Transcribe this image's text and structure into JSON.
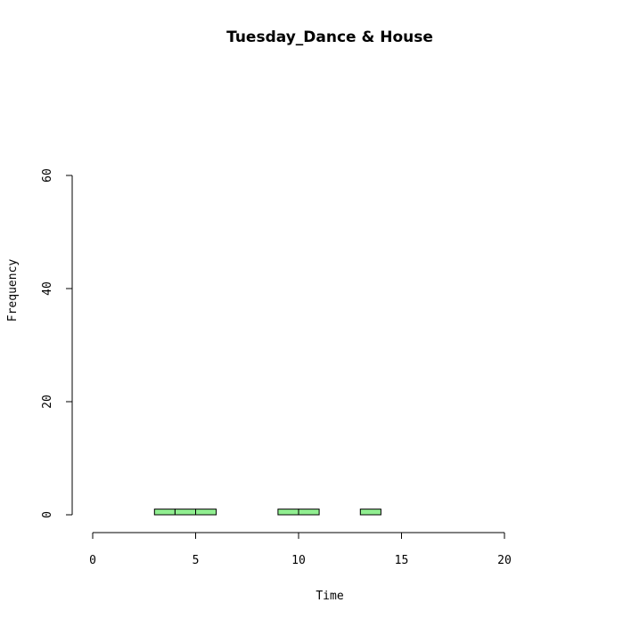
{
  "chart_data": {
    "type": "bar",
    "title": "Tuesday_Dance & House",
    "xlabel": "Time",
    "ylabel": "Frequency",
    "xlim": [
      0,
      24
    ],
    "ylim": [
      0,
      60
    ],
    "x_ticks": [
      "0",
      "5",
      "10",
      "15",
      "20"
    ],
    "y_ticks": [
      "0",
      "20",
      "40",
      "60"
    ],
    "bin_width": 1,
    "bins": [
      {
        "start": 0,
        "count": 0
      },
      {
        "start": 1,
        "count": 0
      },
      {
        "start": 2,
        "count": 0
      },
      {
        "start": 3,
        "count": 1
      },
      {
        "start": 4,
        "count": 1
      },
      {
        "start": 5,
        "count": 1
      },
      {
        "start": 6,
        "count": 0
      },
      {
        "start": 7,
        "count": 0
      },
      {
        "start": 8,
        "count": 0
      },
      {
        "start": 9,
        "count": 1
      },
      {
        "start": 10,
        "count": 1
      },
      {
        "start": 11,
        "count": 0
      },
      {
        "start": 12,
        "count": 0
      },
      {
        "start": 13,
        "count": 1
      },
      {
        "start": 14,
        "count": 0
      },
      {
        "start": 15,
        "count": 0
      },
      {
        "start": 16,
        "count": 0
      },
      {
        "start": 17,
        "count": 0
      },
      {
        "start": 18,
        "count": 0
      },
      {
        "start": 19,
        "count": 0
      },
      {
        "start": 20,
        "count": 0
      },
      {
        "start": 21,
        "count": 0
      },
      {
        "start": 22,
        "count": 0
      },
      {
        "start": 23,
        "count": 0
      }
    ],
    "bar_color": "#90ee90",
    "bar_border_color": "#000000",
    "grid": false,
    "legend": "none"
  }
}
